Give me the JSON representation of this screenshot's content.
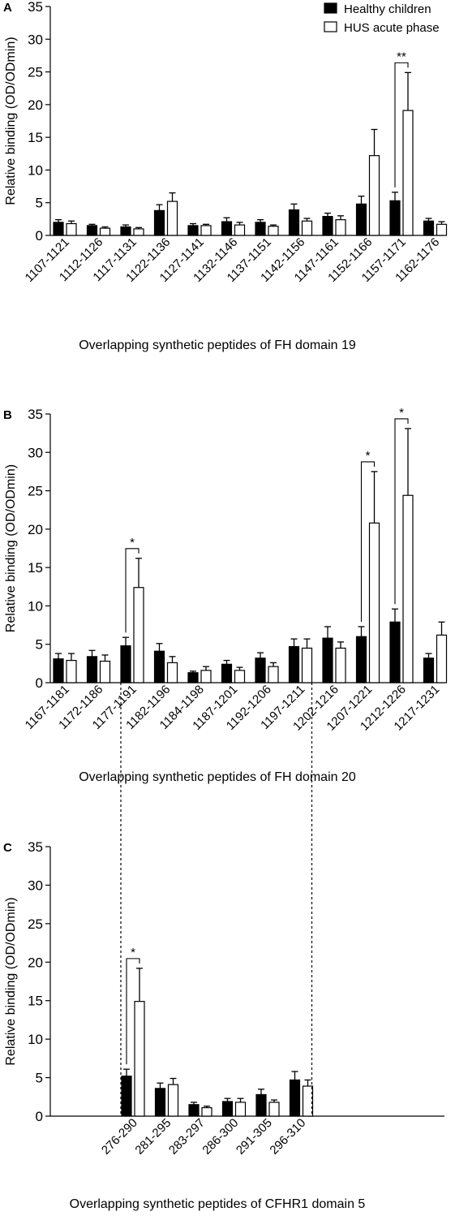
{
  "legend": {
    "position": "top-right",
    "items": [
      {
        "label": "Healthy children",
        "color": "#000000"
      },
      {
        "label": "HUS acute phase",
        "color": "#ffffff"
      }
    ]
  },
  "chart_data": [
    {
      "panel": "A",
      "type": "bar",
      "xlabel": "Overlapping synthetic peptides of FH domain 19",
      "ylabel": "Relative binding (OD/ODmin)",
      "ylim": [
        0,
        35
      ],
      "yticks": [
        0,
        5,
        10,
        15,
        20,
        25,
        30,
        35
      ],
      "grid": false,
      "categories": [
        "1107-1121",
        "1112-1126",
        "1117-1131",
        "1122-1136",
        "1127-1141",
        "1132-1146",
        "1137-1151",
        "1142-1156",
        "1147-1161",
        "1152-1166",
        "1157-1171",
        "1162-1176"
      ],
      "series": [
        {
          "name": "Healthy children",
          "color": "#000000",
          "values": [
            2.0,
            1.5,
            1.3,
            3.8,
            1.5,
            2.1,
            2.0,
            3.9,
            2.9,
            4.8,
            5.3,
            2.2
          ],
          "errors": [
            0.4,
            0.2,
            0.3,
            0.9,
            0.3,
            0.6,
            0.4,
            0.9,
            0.5,
            1.2,
            1.3,
            0.4
          ]
        },
        {
          "name": "HUS acute phase",
          "color": "#ffffff",
          "values": [
            1.8,
            1.1,
            1.0,
            5.2,
            1.5,
            1.6,
            1.4,
            2.2,
            2.4,
            12.2,
            19.1,
            1.7
          ],
          "errors": [
            0.4,
            0.2,
            0.2,
            1.3,
            0.2,
            0.4,
            0.2,
            0.4,
            0.6,
            4.0,
            5.8,
            0.4
          ]
        }
      ],
      "significance": [
        {
          "category_index": 10,
          "label": "**"
        }
      ]
    },
    {
      "panel": "B",
      "type": "bar",
      "xlabel": "Overlapping synthetic peptides of FH domain 20",
      "ylabel": "Relative binding (OD/ODmin)",
      "ylim": [
        0,
        35
      ],
      "yticks": [
        0,
        5,
        10,
        15,
        20,
        25,
        30,
        35
      ],
      "grid": false,
      "categories": [
        "1167-1181",
        "1172-1186",
        "1177-1191",
        "1182-1196",
        "1184-1198",
        "1187-1201",
        "1192-1206",
        "1197-1211",
        "1202-1216",
        "1207-1221",
        "1212-1226",
        "1217-1231"
      ],
      "series": [
        {
          "name": "Healthy children",
          "color": "#000000",
          "values": [
            3.1,
            3.4,
            4.8,
            4.1,
            1.3,
            2.4,
            3.2,
            4.7,
            5.8,
            6.0,
            7.9,
            3.2
          ],
          "errors": [
            0.7,
            0.8,
            1.1,
            1.0,
            0.2,
            0.5,
            0.7,
            1.0,
            1.5,
            1.3,
            1.7,
            0.6
          ]
        },
        {
          "name": "HUS acute phase",
          "color": "#ffffff",
          "values": [
            2.9,
            2.8,
            12.4,
            2.6,
            1.6,
            1.6,
            2.1,
            4.5,
            4.5,
            20.8,
            24.4,
            6.2
          ],
          "errors": [
            0.9,
            0.8,
            3.8,
            0.8,
            0.5,
            0.4,
            0.5,
            1.2,
            0.8,
            6.7,
            8.7,
            1.7
          ]
        }
      ],
      "significance": [
        {
          "category_index": 2,
          "label": "*"
        },
        {
          "category_index": 9,
          "label": "*"
        },
        {
          "category_index": 10,
          "label": "*"
        }
      ]
    },
    {
      "panel": "C",
      "type": "bar",
      "xlabel": "Overlapping synthetic peptides of CFHR1 domain 5",
      "ylabel": "Relative binding (OD/ODmin)",
      "ylim": [
        0,
        35
      ],
      "yticks": [
        0,
        5,
        10,
        15,
        20,
        25,
        30,
        35
      ],
      "grid": false,
      "categories": [
        "276-290",
        "281-295",
        "283-297",
        "286-300",
        "291-305",
        "296-310"
      ],
      "series": [
        {
          "name": "Healthy children",
          "color": "#000000",
          "values": [
            5.2,
            3.6,
            1.5,
            1.9,
            2.8,
            4.7
          ],
          "errors": [
            0.9,
            0.7,
            0.3,
            0.4,
            0.7,
            1.1
          ]
        },
        {
          "name": "HUS acute phase",
          "color": "#ffffff",
          "values": [
            14.9,
            4.1,
            1.1,
            1.8,
            1.8,
            3.9
          ],
          "errors": [
            4.3,
            0.8,
            0.2,
            0.5,
            0.3,
            0.8
          ]
        }
      ],
      "significance": [
        {
          "category_index": 0,
          "label": "*"
        }
      ]
    }
  ]
}
